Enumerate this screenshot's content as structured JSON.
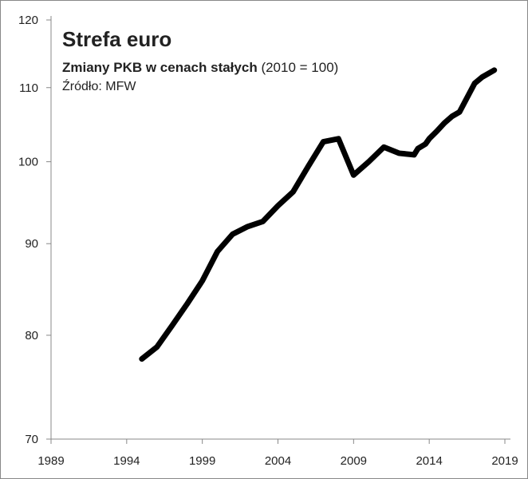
{
  "chart_data": {
    "type": "line",
    "title": "Strefa euro",
    "subtitle": "Zmiany PKB w cenach stałych",
    "subtitle_note": "(2010 = 100)",
    "source": "Źródło: MFW",
    "x": [
      1995,
      1996,
      1997,
      1998,
      1999,
      2000,
      2001,
      2002,
      2003,
      2004,
      2005,
      2006,
      2007,
      2008,
      2009,
      2010,
      2011,
      2012,
      2013,
      2013.25,
      2013.75,
      2014,
      2014.5,
      2015,
      2015.5,
      2016,
      2017,
      2017.5,
      2018.3
    ],
    "series": [
      {
        "color": "#000000",
        "values": [
          77.6,
          78.8,
          81.0,
          83.3,
          85.8,
          89.1,
          91.1,
          92.0,
          92.6,
          94.5,
          96.2,
          99.4,
          102.6,
          103.0,
          98.3,
          100,
          101.9,
          101.1,
          100.9,
          101.7,
          102.3,
          103.0,
          104.0,
          105.1,
          106.0,
          106.6,
          110.6,
          111.5,
          112.5
        ]
      }
    ],
    "xlim": [
      1989,
      2019
    ],
    "xticks": [
      1989,
      1994,
      1999,
      2004,
      2009,
      2014,
      2019
    ],
    "ylim": [
      70,
      120
    ],
    "yticks": [
      70,
      80,
      90,
      100,
      110,
      120
    ],
    "log_y": true,
    "grid": false
  }
}
